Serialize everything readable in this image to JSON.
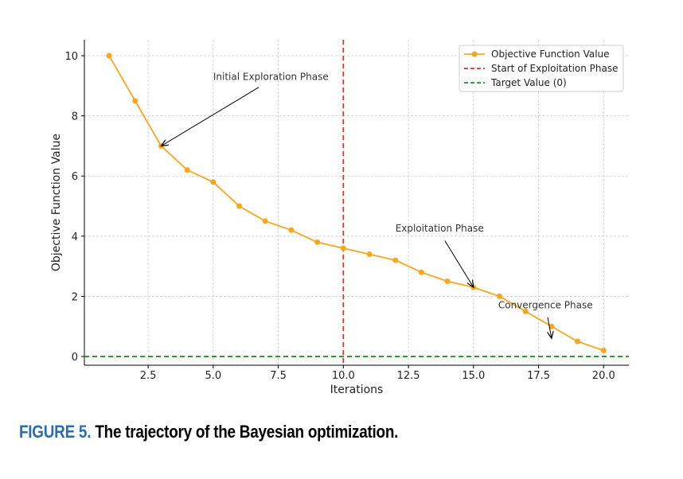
{
  "chart_data": {
    "type": "line",
    "xlabel": "Iterations",
    "ylabel": "Objective Function Value",
    "xlim": [
      0.05,
      20.97
    ],
    "ylim": [
      -0.29,
      10.53
    ],
    "xticks": [
      2.5,
      5.0,
      7.5,
      10.0,
      12.5,
      15.0,
      17.5,
      20.0
    ],
    "xtick_labels": [
      "2.5",
      "5.0",
      "7.5",
      "10.0",
      "12.5",
      "15.0",
      "17.5",
      "20.0"
    ],
    "yticks": [
      0,
      2,
      4,
      6,
      8,
      10
    ],
    "ytick_labels": [
      "0",
      "2",
      "4",
      "6",
      "8",
      "10"
    ],
    "grid": true,
    "legend_position": "top-right",
    "series": [
      {
        "name": "Objective Function Value",
        "color": "#f5a623",
        "x": [
          1,
          2,
          3,
          4,
          5,
          6,
          7,
          8,
          9,
          10,
          11,
          12,
          13,
          14,
          15,
          16,
          17,
          18,
          19,
          20
        ],
        "y": [
          10,
          8.5,
          7.0,
          6.2,
          5.8,
          5.0,
          4.5,
          4.2,
          3.8,
          3.6,
          3.4,
          3.2,
          2.8,
          2.5,
          2.3,
          2.0,
          1.5,
          1.0,
          0.5,
          0.2
        ]
      }
    ],
    "vlines": [
      {
        "name": "Start of Exploitation Phase",
        "x": 10,
        "color": "#e03030"
      }
    ],
    "hlines": [
      {
        "name": "Target Value (0)",
        "y": 0,
        "color": "#2e8b2e"
      }
    ],
    "legend": [
      "Objective Function Value",
      "Start of Exploitation Phase",
      "Target Value (0)"
    ],
    "annotations": [
      {
        "text": "Initial Exploration Phase",
        "text_x": 5.0,
        "text_y": 9.2,
        "tail_x": 6.75,
        "tail_y": 8.95,
        "point_x": 3,
        "point_y": 7.0
      },
      {
        "text": "Exploitation Phase",
        "text_x": 12.0,
        "text_y": 4.15,
        "tail_x": 13.9,
        "tail_y": 3.85,
        "point_x": 15,
        "point_y": 2.3
      },
      {
        "text": "Convergence Phase",
        "text_x": 15.95,
        "text_y": 1.6,
        "tail_x": 17.85,
        "tail_y": 1.3,
        "point_x": 18,
        "point_y": 0.6
      }
    ]
  },
  "caption": {
    "label": "FIGURE 5.",
    "text": "The trajectory of the Bayesian optimization."
  }
}
